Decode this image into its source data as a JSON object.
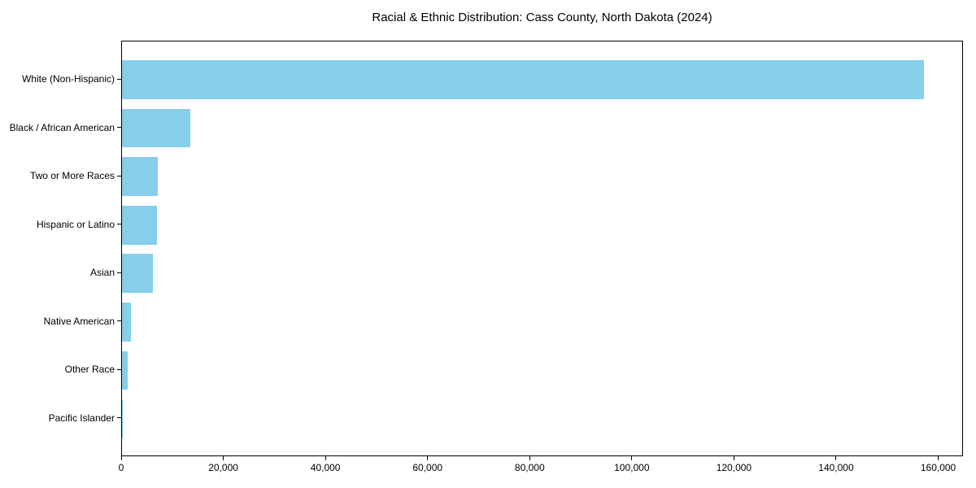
{
  "figure": {
    "background": "#ffffff",
    "text_color": "#000000",
    "spine_color": "#000000"
  },
  "chart_data": {
    "type": "bar",
    "orientation": "horizontal",
    "title": "Racial & Ethnic Distribution: Cass County, North Dakota (2024)",
    "xlabel": "",
    "ylabel": "",
    "categories": [
      "White (Non-Hispanic)",
      "Black / African American",
      "Two or More Races",
      "Hispanic or Latino",
      "Asian",
      "Native American",
      "Other Race",
      "Pacific Islander"
    ],
    "values": [
      157000,
      13300,
      7000,
      6800,
      6000,
      1800,
      1100,
      150
    ],
    "bar_color": "#87CEEB",
    "xlim": [
      0,
      164850
    ],
    "x_ticks": [
      0,
      20000,
      40000,
      60000,
      80000,
      100000,
      120000,
      140000,
      160000
    ],
    "x_tick_labels": [
      "0",
      "20,000",
      "40,000",
      "60,000",
      "80,000",
      "100,000",
      "120,000",
      "140,000",
      "160,000"
    ],
    "grid": false,
    "legend": null
  }
}
